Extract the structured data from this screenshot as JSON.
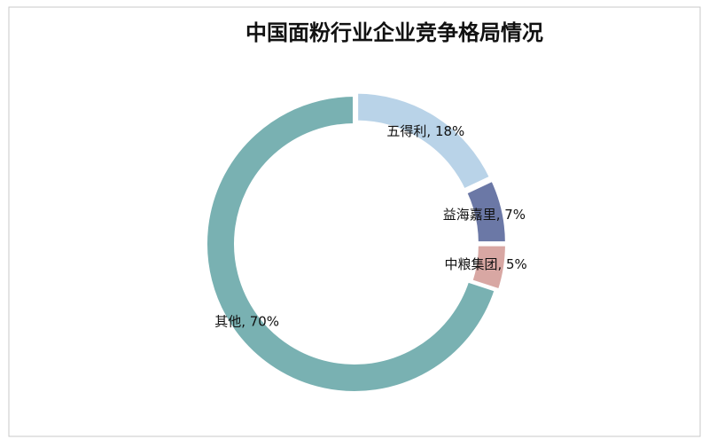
{
  "chart_data": {
    "type": "donut",
    "title": "中国面粉行业企业竞争格局情况",
    "categories": [
      "五得利",
      "益海嘉里",
      "中粮集团",
      "其他"
    ],
    "values": [
      18,
      7,
      5,
      70
    ],
    "value_labels": [
      "五得利, 18%",
      "益海嘉里, 7%",
      "中粮集团, 5%",
      "其他, 70%"
    ],
    "colors": [
      "#b9d3e8",
      "#6b78a6",
      "#d8a7a3",
      "#79b1b2"
    ]
  }
}
